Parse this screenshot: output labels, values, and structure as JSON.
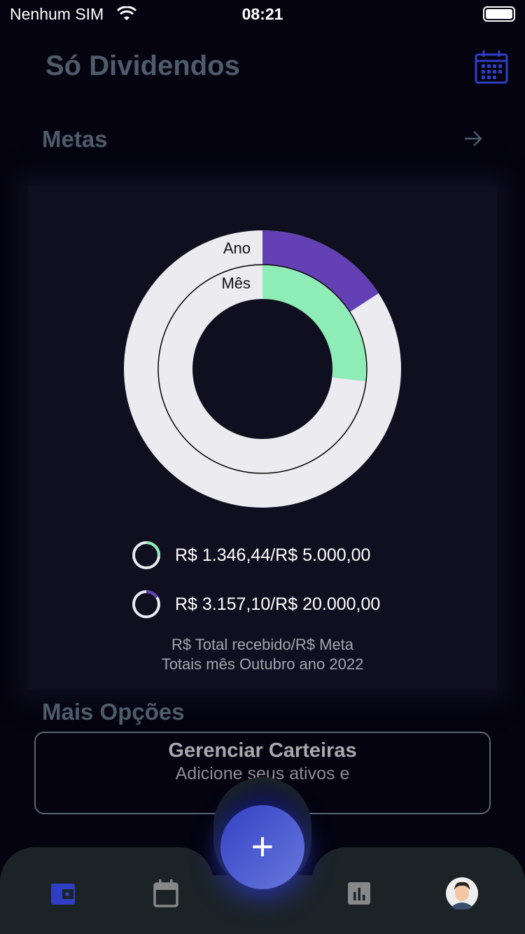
{
  "status_bar": {
    "carrier": "Nenhum SIM",
    "time": "08:21"
  },
  "header": {
    "title": "Só Dividendos",
    "calendar_icon": "calendar-grid-icon"
  },
  "metas": {
    "title": "Metas",
    "arrow_icon": "arrow-right-icon"
  },
  "chart_data": {
    "type": "pie",
    "rings": [
      {
        "label": "Ano",
        "received": 3157.1,
        "goal": 20000.0,
        "fraction": 0.158,
        "color": "#6340b4"
      },
      {
        "label": "Mês",
        "received": 1346.44,
        "goal": 5000.0,
        "fraction": 0.269,
        "color": "#8eecb6"
      }
    ],
    "remainder_color": "#ebebf0",
    "legend": [
      "R$ 1.346,44/R$ 5.000,00",
      "R$ 3.157,10/R$ 20.000,00"
    ],
    "caption_line1": "R$ Total recebido/R$ Meta",
    "caption_line2": "Totais mês Outubro ano 2022"
  },
  "more": {
    "title": "Mais Opções",
    "card_title": "Gerenciar Carteiras",
    "card_sub": "Adicione seus ativos e",
    "card_sub2": "Adicione"
  },
  "nav": {
    "items": [
      "wallet-icon",
      "calendar-icon",
      "add-icon",
      "bar-chart-icon",
      "avatar"
    ],
    "active_color": "#2f3ec4"
  }
}
